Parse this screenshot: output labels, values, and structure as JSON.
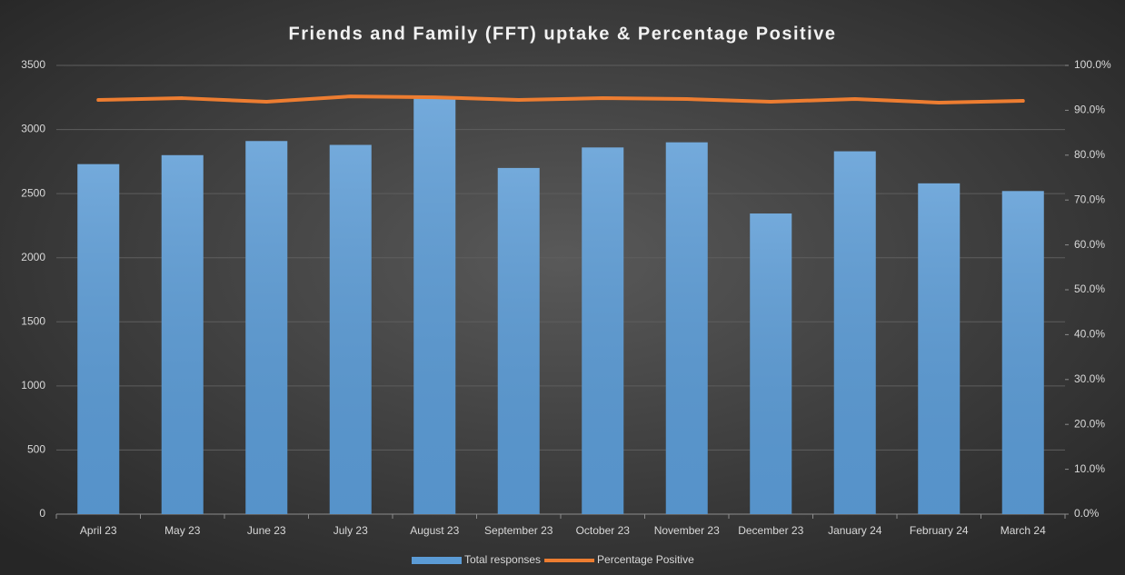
{
  "chart_data": {
    "type": "bar",
    "title": "Friends and Family (FFT) uptake & Percentage Positive",
    "categories": [
      "April 23",
      "May 23",
      "June 23",
      "July 23",
      "August 23",
      "September 23",
      "October 23",
      "November 23",
      "December 23",
      "January 24",
      "February 24",
      "March 24"
    ],
    "series": [
      {
        "name": "Total responses",
        "type": "bar",
        "color": "#5b9bd5",
        "values": [
          2730,
          2800,
          2910,
          2880,
          3250,
          2700,
          2860,
          2900,
          2345,
          2830,
          2580,
          2520
        ]
      },
      {
        "name": "Percentage Positive",
        "type": "line",
        "axis": "y2",
        "color": "#ed7d31",
        "values": [
          92.3,
          92.7,
          91.9,
          93.1,
          92.9,
          92.3,
          92.7,
          92.5,
          91.9,
          92.5,
          91.7,
          92.1
        ]
      }
    ],
    "ylim": [
      0,
      3500
    ],
    "yticks": [
      0,
      500,
      1000,
      1500,
      2000,
      2500,
      3000,
      3500
    ],
    "y2lim": [
      0,
      100
    ],
    "y2ticks": [
      {
        "value": 0,
        "label": "0.0%"
      },
      {
        "value": 10,
        "label": "10.0%"
      },
      {
        "value": 20,
        "label": "20.0%"
      },
      {
        "value": 30,
        "label": "30.0%"
      },
      {
        "value": 40,
        "label": "40.0%"
      },
      {
        "value": 50,
        "label": "50.0%"
      },
      {
        "value": 60,
        "label": "60.0%"
      },
      {
        "value": 70,
        "label": "70.0%"
      },
      {
        "value": 80,
        "label": "80.0%"
      },
      {
        "value": 90,
        "label": "90.0%"
      },
      {
        "value": 100,
        "label": "100.0%"
      }
    ],
    "grid": true,
    "legend": "bottom"
  }
}
